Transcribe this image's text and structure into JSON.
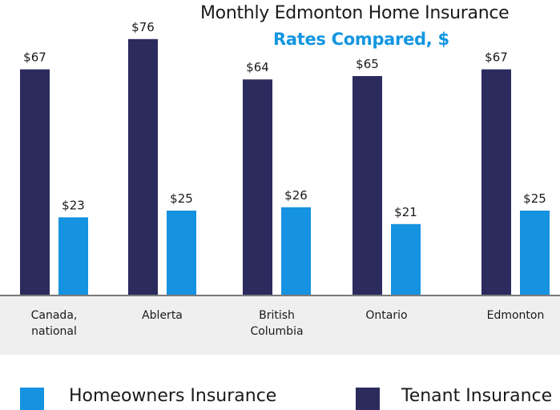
{
  "chart_data": {
    "type": "bar",
    "title": "Monthly Edmonton Home Insurance",
    "subtitle": "Rates Compared, $",
    "categories": [
      "Canada, national",
      "Ablerta",
      "British Columbia",
      "Ontario",
      "Edmonton"
    ],
    "category_lines": [
      [
        "Canada,",
        "national"
      ],
      [
        "Ablerta"
      ],
      [
        "British",
        "Columbia"
      ],
      [
        "Ontario"
      ],
      [
        "Edmonton"
      ]
    ],
    "series": [
      {
        "name": "Tenant Insurance",
        "color": "#2b2b5e",
        "values": [
          67,
          76,
          64,
          65,
          67
        ],
        "labels": [
          "$67",
          "$76",
          "$64",
          "$65",
          "$67"
        ]
      },
      {
        "name": "Homeowners Insurance",
        "color": "#1592e0",
        "values": [
          23,
          25,
          26,
          21,
          25
        ],
        "labels": [
          "$23",
          "$25",
          "$26",
          "$21",
          "$25"
        ]
      }
    ],
    "ylim": [
      0,
      85
    ],
    "xlabel": "",
    "ylabel": "",
    "grid": false,
    "legend_position": "bottom"
  },
  "legend": [
    {
      "label": "Homeowners Insurance",
      "color": "#1592e0"
    },
    {
      "label": "Tenant Insurance",
      "color": "#2b2b5e"
    }
  ]
}
